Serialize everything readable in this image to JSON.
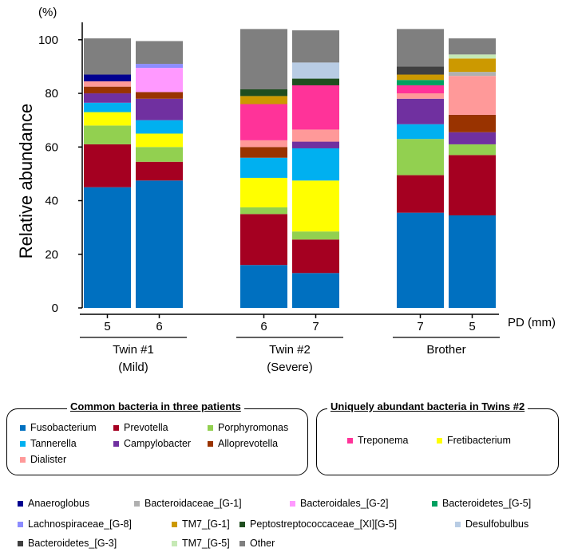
{
  "chart_data": {
    "type": "stacked-bar",
    "ylabel": "Relative abundance",
    "yunit": "(%)",
    "xunit": "PD (mm)",
    "ylim": [
      0,
      105
    ],
    "yticks": [
      0,
      20,
      40,
      60,
      80,
      100
    ],
    "groups": [
      {
        "name": "Twin #1",
        "sub": "(Mild)"
      },
      {
        "name": "Twin #2",
        "sub": "(Severe)"
      },
      {
        "name": "Brother",
        "sub": ""
      }
    ],
    "bars": [
      {
        "label": "5",
        "group": 0
      },
      {
        "label": "6",
        "group": 0
      },
      {
        "label": "6",
        "group": 1
      },
      {
        "label": "7",
        "group": 1
      },
      {
        "label": "7",
        "group": 2
      },
      {
        "label": "5",
        "group": 2
      }
    ],
    "series": [
      {
        "name": "Fusobacterium",
        "color": "#0070c0",
        "values": [
          45,
          47.5,
          16,
          13,
          35.5,
          34.5
        ]
      },
      {
        "name": "Prevotella",
        "color": "#a50021",
        "values": [
          16,
          7,
          19,
          12.5,
          14,
          22.5
        ]
      },
      {
        "name": "Porphyromonas",
        "color": "#92d050",
        "values": [
          7,
          5.5,
          2.5,
          3,
          13.5,
          4
        ]
      },
      {
        "name": "Fretibacterium",
        "color": "#ffff00",
        "values": [
          5,
          5,
          11,
          19,
          0,
          0
        ]
      },
      {
        "name": "Tannerella",
        "color": "#00b0f0",
        "values": [
          3.5,
          5,
          7.5,
          12,
          5.5,
          0
        ]
      },
      {
        "name": "Campylobacter",
        "color": "#7030a0",
        "values": [
          3.5,
          8,
          0,
          2.5,
          9.5,
          4.5
        ]
      },
      {
        "name": "Alloprevotella",
        "color": "#993300",
        "values": [
          2.5,
          2.5,
          4,
          0,
          0,
          6.5
        ]
      },
      {
        "name": "Dialister",
        "color": "#ff9999",
        "values": [
          2,
          0,
          2.5,
          4.5,
          2,
          14.5
        ]
      },
      {
        "name": "Bacteroidaceae_[G-1]",
        "color": "#b0b0b0",
        "values": [
          0,
          0,
          0,
          0,
          0,
          1.5
        ]
      },
      {
        "name": "Treponema",
        "color": "#ff3399",
        "values": [
          0,
          0,
          13.5,
          16.5,
          3,
          0
        ]
      },
      {
        "name": "Bacteroidetes_[G-5]",
        "color": "#00a060",
        "values": [
          0,
          0,
          0,
          0,
          2,
          0
        ]
      },
      {
        "name": "Anaeroglobus",
        "color": "#000090",
        "values": [
          2.5,
          0,
          0,
          0,
          0,
          0
        ]
      },
      {
        "name": "Bacteroidales_[G-2]",
        "color": "#ff99ff",
        "values": [
          0,
          9,
          0,
          0,
          0,
          0
        ]
      },
      {
        "name": "TM7_[G-1]",
        "color": "#cc9900",
        "values": [
          0,
          0,
          3,
          0,
          2,
          5
        ]
      },
      {
        "name": "Peptostreptococcaceae_[XI][G-5]",
        "color": "#1f4e1f",
        "values": [
          0,
          0,
          2.5,
          2.5,
          0,
          0
        ]
      },
      {
        "name": "Desulfobulbus",
        "color": "#b8cce4",
        "values": [
          0,
          0,
          0,
          6,
          0,
          0
        ]
      },
      {
        "name": "Bacteroidetes_[G-3]",
        "color": "#404040",
        "values": [
          0,
          0,
          0,
          0,
          3,
          0
        ]
      },
      {
        "name": "Lachnospiraceae_[G-8]",
        "color": "#8c8cff",
        "values": [
          0,
          1.5,
          0,
          0,
          0,
          0
        ]
      },
      {
        "name": "TM7_[G-5]",
        "color": "#c6e9b5",
        "values": [
          0,
          0,
          0,
          0,
          0,
          1.5
        ]
      },
      {
        "name": "Other",
        "color": "#7f7f7f",
        "values": [
          13.5,
          8.5,
          22.5,
          12,
          14,
          6
        ]
      }
    ]
  },
  "legend": {
    "common_title": "Common bacteria in three patients",
    "common": [
      {
        "name": "Fusobacterium",
        "color": "#0070c0"
      },
      {
        "name": "Prevotella",
        "color": "#a50021"
      },
      {
        "name": "Porphyromonas",
        "color": "#92d050"
      },
      {
        "name": "Tannerella",
        "color": "#00b0f0"
      },
      {
        "name": "Campylobacter",
        "color": "#7030a0"
      },
      {
        "name": "Alloprevotella",
        "color": "#993300"
      },
      {
        "name": "Dialister",
        "color": "#ff9999"
      }
    ],
    "unique_title": "Uniquely abundant bacteria in Twins #2",
    "unique": [
      {
        "name": "Treponema",
        "color": "#ff3399"
      },
      {
        "name": "Fretibacterium",
        "color": "#ffff00"
      }
    ],
    "others": [
      {
        "name": "Anaeroglobus",
        "color": "#000090"
      },
      {
        "name": "Bacteroidaceae_[G-1]",
        "color": "#b0b0b0"
      },
      {
        "name": "Bacteroidales_[G-2]",
        "color": "#ff99ff"
      },
      {
        "name": "Bacteroidetes_[G-5]",
        "color": "#00a060"
      },
      {
        "name": "Lachnospiraceae_[G-8]",
        "color": "#8c8cff"
      },
      {
        "name": "TM7_[G-1]",
        "color": "#cc9900"
      },
      {
        "name": "Peptostreptococcaceae_[XI][G-5]",
        "color": "#1f4e1f"
      },
      {
        "name": "Desulfobulbus",
        "color": "#b8cce4"
      },
      {
        "name": "Bacteroidetes_[G-3]",
        "color": "#404040"
      },
      {
        "name": "TM7_[G-5]",
        "color": "#c6e9b5"
      },
      {
        "name": "Other",
        "color": "#7f7f7f"
      }
    ]
  }
}
